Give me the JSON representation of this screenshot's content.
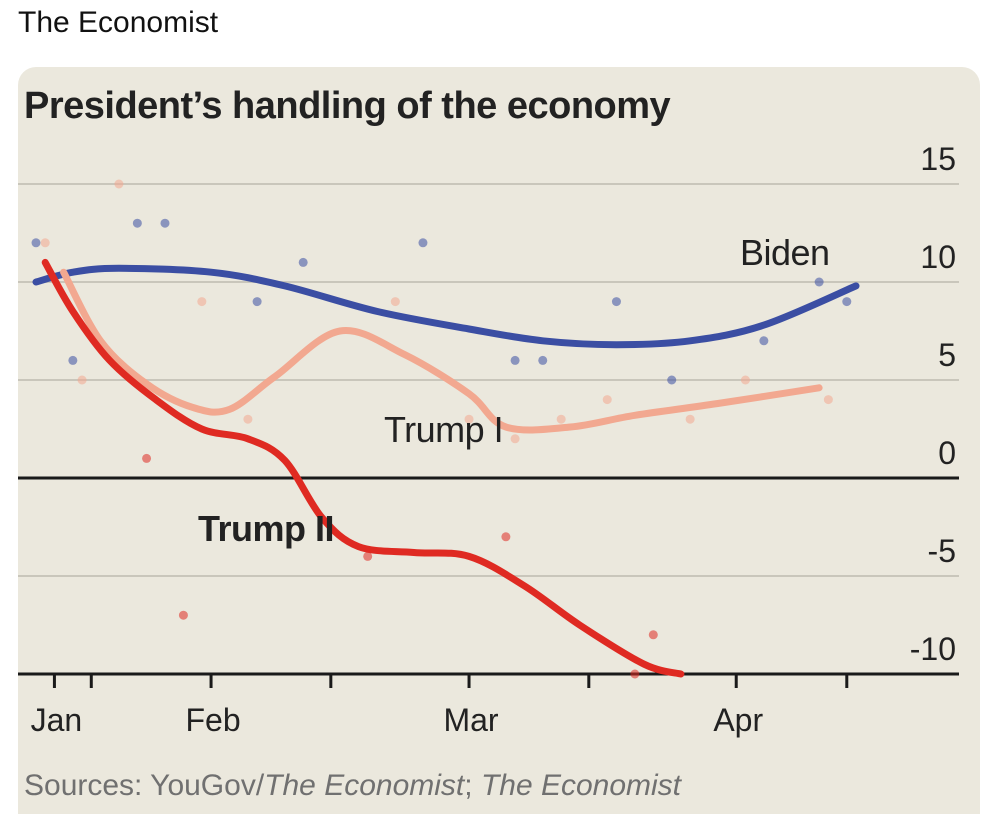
{
  "post": {
    "header": "The Economist"
  },
  "chart_data": {
    "type": "line",
    "title": "President’s handling of the economy",
    "xlabel": "",
    "ylabel": "",
    "x_ticks": [
      {
        "label": "Jan",
        "day": 3
      },
      {
        "label": "",
        "day": 7
      },
      {
        "label": "Feb",
        "day": 20
      },
      {
        "label": "",
        "day": 33
      },
      {
        "label": "Mar",
        "day": 48
      },
      {
        "label": "",
        "day": 61
      },
      {
        "label": "Apr",
        "day": 77
      },
      {
        "label": "",
        "day": 89
      }
    ],
    "y_ticks": [
      15,
      10,
      5,
      0,
      -5,
      -10
    ],
    "ylim": [
      -10,
      15
    ],
    "xlim": [
      1,
      90
    ],
    "colors": {
      "biden": "#3b4ea3",
      "trump1": "#f2a890",
      "trump2": "#df2a22",
      "zero_line": "#1a1a1a",
      "grid": "#c9c6bb"
    },
    "series": [
      {
        "name": "Biden",
        "label_text": "Biden",
        "x": [
          1,
          5,
          10,
          20,
          28,
          38,
          48,
          56,
          64,
          72,
          80,
          90
        ],
        "y": [
          10.0,
          10.5,
          10.7,
          10.5,
          9.8,
          8.5,
          7.6,
          7.0,
          6.8,
          7.0,
          7.8,
          9.8
        ],
        "dots_x": [
          1,
          5,
          12,
          15,
          25,
          30,
          43,
          53,
          56,
          64,
          70,
          80,
          86,
          89
        ],
        "dots_y": [
          12,
          6,
          13,
          13,
          9,
          11,
          12,
          6,
          6,
          9,
          5,
          7,
          10,
          9
        ]
      },
      {
        "name": "Trump I",
        "label_text": "Trump I",
        "x": [
          4,
          8,
          13,
          18,
          22,
          27,
          34,
          41,
          48,
          52,
          59,
          66,
          75,
          86
        ],
        "y": [
          10.5,
          7.0,
          4.8,
          3.6,
          3.5,
          5.2,
          7.5,
          6.3,
          4.3,
          2.6,
          2.6,
          3.2,
          3.8,
          4.6
        ],
        "dots_x": [
          2,
          6,
          10,
          19,
          24,
          40,
          48,
          53,
          58,
          63,
          72,
          78,
          87
        ],
        "dots_y": [
          12,
          5,
          15,
          9,
          3,
          9,
          3,
          2,
          3,
          4,
          3,
          5,
          4
        ]
      },
      {
        "name": "Trump II",
        "label_text": "Trump II",
        "x": [
          2,
          5,
          9,
          14,
          19,
          24,
          28,
          32,
          36,
          42,
          48,
          54,
          60,
          67,
          71
        ],
        "y": [
          11.0,
          8.5,
          6.0,
          4.0,
          2.5,
          2.0,
          0.9,
          -2.0,
          -3.5,
          -3.8,
          -4.0,
          -5.5,
          -7.5,
          -9.5,
          -10.0
        ],
        "dots_x": [
          13,
          17,
          37,
          52,
          66,
          68
        ],
        "dots_y": [
          1,
          -7,
          -4,
          -3,
          -10,
          -8
        ]
      }
    ]
  },
  "sources": {
    "prefix": "Sources: YouGov/",
    "italic1": "The Economist",
    "middle": "; ",
    "italic2": "The Economist"
  }
}
